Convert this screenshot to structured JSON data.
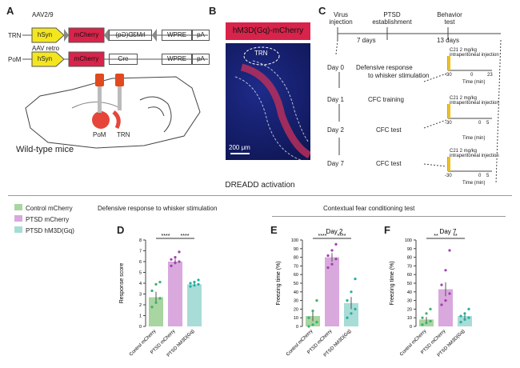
{
  "panels": {
    "A": "A",
    "B": "B",
    "C": "C",
    "D": "D",
    "E": "E",
    "F": "F"
  },
  "panelA": {
    "virus1": "AAV2/9",
    "virus2": "AAV retro",
    "trn": "TRN",
    "pom": "PoM",
    "row1": {
      "promoter": "hSyn",
      "reporter": "mCherry",
      "insert": "hM3D(Gq)",
      "wpre": "WPRE",
      "pa": "pA"
    },
    "row2": {
      "promoter": "hSyn",
      "reporter": "mCherry",
      "insert": "Cre",
      "wpre": "WPRE",
      "pa": "pA"
    },
    "brain_pom": "PoM",
    "brain_trn": "TRN",
    "mouse": "Wild-type mice"
  },
  "panelB": {
    "title": "hM3D(Gq)-mCherry",
    "region": "TRN",
    "scale": "200 μm"
  },
  "panelC": {
    "t1": "Virus",
    "t1b": "injection",
    "t2": "PTSD",
    "t2b": "establishment",
    "t3": "Behavior",
    "t3b": "test",
    "d1": "7 days",
    "d2": "13 days",
    "days": [
      "Day 0",
      "Day 1",
      "Day 2",
      "Day 7"
    ],
    "tasks": [
      "Defensive response",
      "to whisker stimulation",
      "CFC training",
      "CFC test",
      "CFC test"
    ],
    "inj": "C21 2 mg/kg",
    "inj2": "intraperitoneal injection",
    "time": "Time (min)",
    "ticks1": [
      "-30",
      "0",
      "23"
    ],
    "ticks2": [
      "-30",
      "0",
      "5"
    ]
  },
  "section": "DREADD activation",
  "legend": [
    "Control mCherry",
    "PTSD mCherry",
    "PTSD hM3D(Gq)"
  ],
  "colors": {
    "control": "#a8d5a0",
    "ptsd": "#d9a8dd",
    "hm3d": "#a8dcd6",
    "controlDot": "#3cb070",
    "ptsdDot": "#a040b0",
    "hm3dDot": "#20b0a0"
  },
  "subtitleD": "Defensive response to whisker stimulation",
  "subtitleEF": "Contextual fear conditioning test",
  "chart_data": [
    {
      "type": "bar",
      "ylabel": "Response score",
      "ylim": [
        0,
        8
      ],
      "yticks": [
        "0",
        "1",
        "2",
        "3",
        "4",
        "5",
        "6",
        "7",
        "8"
      ],
      "categories": [
        "Control mCherry",
        "PTSD mCherry",
        "PTSD hM3D(Gq)"
      ],
      "values": [
        2.7,
        6.0,
        3.9
      ],
      "errors": [
        0.5,
        0.25,
        0.15
      ],
      "sig": [
        "****",
        "****"
      ],
      "points": [
        [
          1.8,
          2.2,
          2.6,
          3.3,
          3.9,
          4.1
        ],
        [
          5.6,
          5.9,
          6.0,
          6.2,
          6.4,
          6.9
        ],
        [
          3.7,
          3.8,
          3.9,
          4.0,
          4.1,
          4.3
        ]
      ]
    },
    {
      "type": "bar",
      "title": "Day 2",
      "ylabel": "Freezing time (%)",
      "ylim": [
        0,
        100
      ],
      "yticks": [
        "0",
        "10",
        "20",
        "30",
        "40",
        "50",
        "60",
        "70",
        "80",
        "90",
        "100"
      ],
      "categories": [
        "Control mCherry",
        "PTSD mCherry",
        "PTSD hM3D(Gq)"
      ],
      "values": [
        12,
        80,
        27
      ],
      "errors": [
        6,
        5,
        7
      ],
      "sig": [
        "****",
        "****"
      ],
      "points": [
        [
          0,
          2,
          5,
          10,
          18,
          30
        ],
        [
          68,
          72,
          78,
          82,
          88,
          95
        ],
        [
          10,
          15,
          20,
          30,
          40,
          55
        ]
      ]
    },
    {
      "type": "bar",
      "title": "Day 7",
      "ylabel": "Freezing time (%)",
      "ylim": [
        0,
        100
      ],
      "yticks": [
        "0",
        "10",
        "20",
        "30",
        "40",
        "50",
        "60",
        "70",
        "80",
        "90",
        "100"
      ],
      "categories": [
        "Control mCherry",
        "PTSD mCherry",
        "PTSD hM3D(Gq)"
      ],
      "values": [
        8,
        43,
        12
      ],
      "errors": [
        3,
        8,
        3
      ],
      "sig": [
        "**",
        "**"
      ],
      "points": [
        [
          2,
          4,
          6,
          10,
          15,
          20
        ],
        [
          25,
          30,
          38,
          48,
          65,
          88
        ],
        [
          5,
          8,
          10,
          12,
          15,
          20
        ]
      ]
    }
  ]
}
